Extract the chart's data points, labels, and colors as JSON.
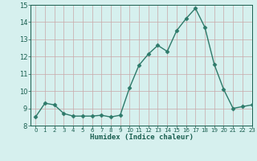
{
  "x": [
    0,
    1,
    2,
    3,
    4,
    5,
    6,
    7,
    8,
    9,
    10,
    11,
    12,
    13,
    14,
    15,
    16,
    17,
    18,
    19,
    20,
    21,
    22,
    23
  ],
  "y": [
    8.5,
    9.3,
    9.2,
    8.7,
    8.55,
    8.55,
    8.55,
    8.6,
    8.5,
    8.6,
    10.2,
    11.5,
    12.15,
    12.65,
    12.3,
    13.5,
    14.2,
    14.8,
    13.7,
    11.55,
    10.1,
    9.0,
    9.1,
    9.2
  ],
  "xlabel": "Humidex (Indice chaleur)",
  "ylim": [
    8,
    15
  ],
  "xlim": [
    -0.5,
    23
  ],
  "yticks": [
    8,
    9,
    10,
    11,
    12,
    13,
    14,
    15
  ],
  "xticks": [
    0,
    1,
    2,
    3,
    4,
    5,
    6,
    7,
    8,
    9,
    10,
    11,
    12,
    13,
    14,
    15,
    16,
    17,
    18,
    19,
    20,
    21,
    22,
    23
  ],
  "line_color": "#2d7a6a",
  "marker": "D",
  "marker_size": 2.5,
  "bg_color": "#d6f0ee",
  "grid_color": "#c8a8a8",
  "xlabel_color": "#1a5f50",
  "tick_color": "#1a5f50",
  "line_width": 1.0
}
